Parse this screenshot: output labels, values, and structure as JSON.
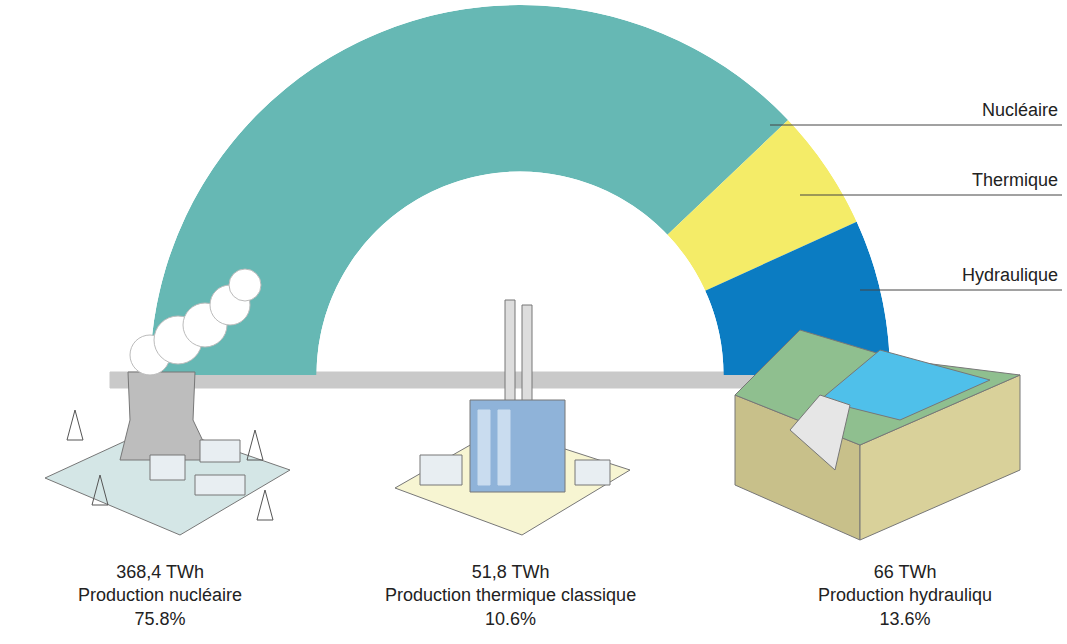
{
  "chart_data": {
    "type": "pie",
    "categories": [
      "Nucléaire",
      "Thermique",
      "Hydraulique"
    ],
    "values": [
      75.8,
      10.6,
      13.6
    ],
    "value_labels": [
      "75.8%",
      "10.6%",
      "13.6%"
    ],
    "colors": [
      "#66b8b4",
      "#f4ec68",
      "#0b7cc2"
    ],
    "production": {
      "categories": [
        "Production nucléaire",
        "Production thermique classique",
        "Production hydrauliqu"
      ],
      "values": [
        368.4,
        51.8,
        66
      ],
      "value_labels": [
        "368,4 TWh",
        "51,8 TWh",
        "66 TWh"
      ]
    }
  }
}
